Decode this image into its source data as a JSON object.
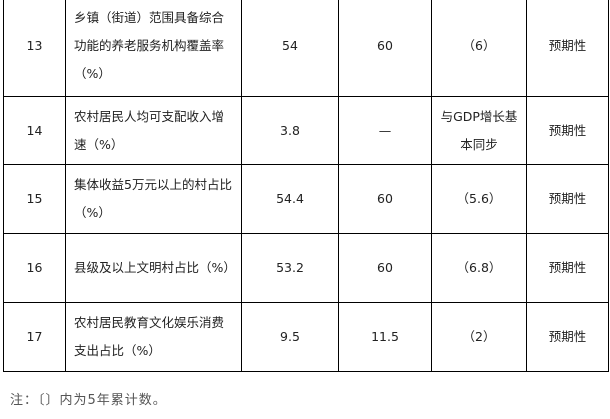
{
  "rows": [
    {
      "no": "13",
      "indicator": "乡镇（街道）范围具备综合功能的养老服务机构覆盖率（%）",
      "base": "54",
      "target": "60",
      "change": "（6）",
      "attribute": "预期性"
    },
    {
      "no": "14",
      "indicator": "农村居民人均可支配收入增速（%）",
      "base": "3.8",
      "target": "—",
      "change": "与GDP增长基本同步",
      "attribute": "预期性"
    },
    {
      "no": "15",
      "indicator": "集体收益5万元以上的村占比（%）",
      "base": "54.4",
      "target": "60",
      "change": "（5.6）",
      "attribute": "预期性"
    },
    {
      "no": "16",
      "indicator": "县级及以上文明村占比（%）",
      "base": "53.2",
      "target": "60",
      "change": "（6.8）",
      "attribute": "预期性"
    },
    {
      "no": "17",
      "indicator": "农村居民教育文化娱乐消费支出占比（%）",
      "base": "9.5",
      "target": "11.5",
      "change": "（2）",
      "attribute": "预期性"
    }
  ],
  "note": "注：〔〕内为5年累计数。"
}
